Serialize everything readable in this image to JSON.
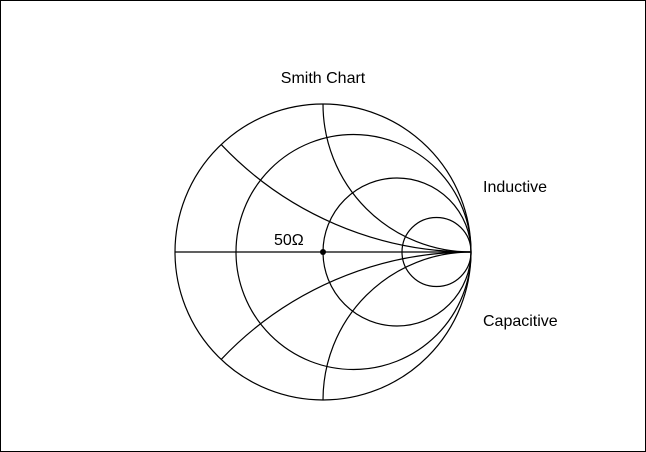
{
  "title": "Smith Chart",
  "labels": {
    "inductive": "Inductive",
    "capacitive": "Capacitive",
    "center": "50Ω"
  }
}
